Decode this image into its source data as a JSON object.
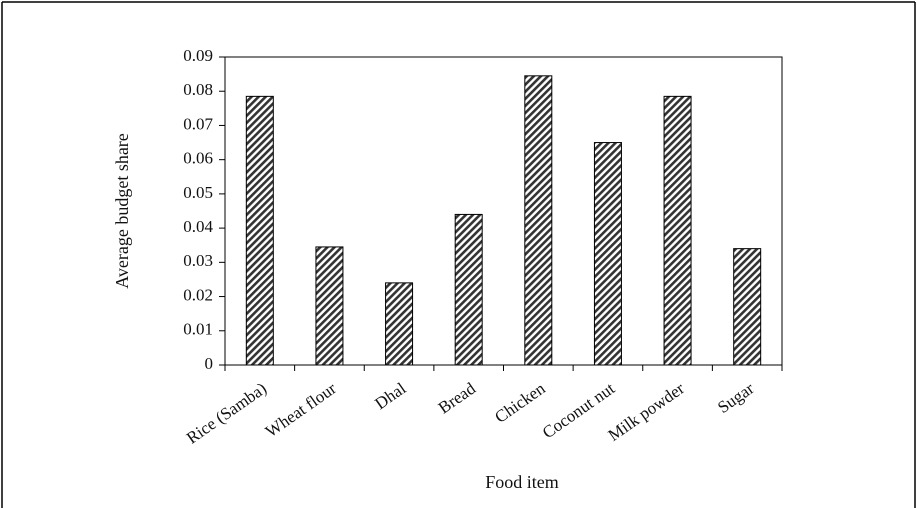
{
  "chart_data": {
    "type": "bar",
    "title": "",
    "xlabel": "Food item",
    "ylabel": "Average budget share",
    "categories": [
      "Rice (Samba)",
      "Wheat flour",
      "Dhal",
      "Bread",
      "Chicken",
      "Coconut nut",
      "Milk powder",
      "Sugar"
    ],
    "values": [
      0.0785,
      0.0345,
      0.024,
      0.044,
      0.0845,
      0.065,
      0.0785,
      0.034
    ],
    "ylim": [
      0,
      0.09
    ],
    "yticks": [
      "0",
      "0.01",
      "0.02",
      "0.03",
      "0.04",
      "0.05",
      "0.06",
      "0.07",
      "0.08",
      "0.09"
    ],
    "grid": false,
    "legend": "none",
    "bar_pattern": "diagonal-hatch",
    "bar_color": "#333333"
  }
}
